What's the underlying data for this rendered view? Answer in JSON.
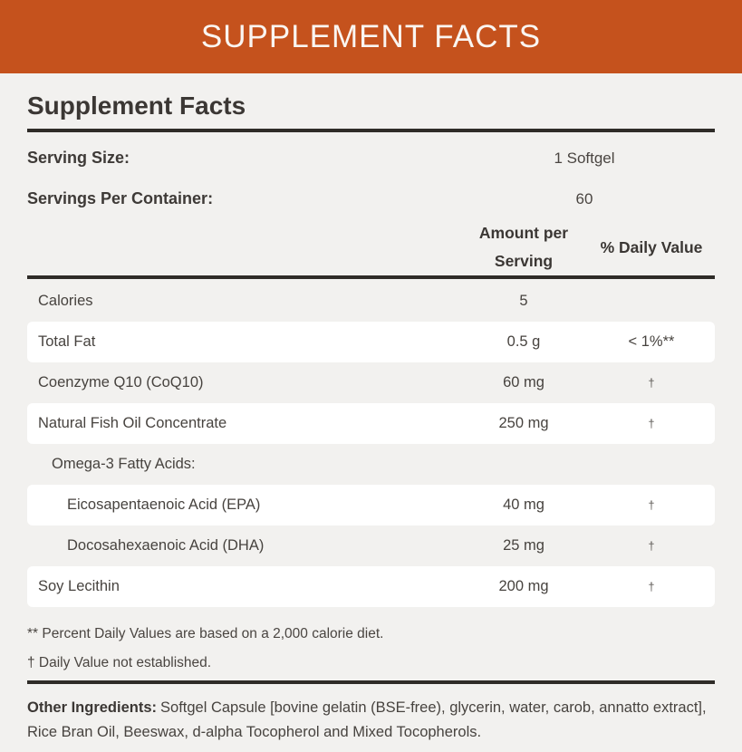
{
  "banner": {
    "title": "SUPPLEMENT FACTS"
  },
  "panel": {
    "heading": "Supplement Facts",
    "serving": [
      {
        "label": "Serving Size:",
        "value": "1 Softgel"
      },
      {
        "label": "Servings Per Container:",
        "value": "60"
      }
    ],
    "columns": {
      "amount": "Amount per Serving",
      "daily_value": "% Daily Value"
    },
    "rows": [
      {
        "name": "Calories",
        "amount": "5",
        "dv": ""
      },
      {
        "name": "Total Fat",
        "amount": "0.5 g",
        "dv": "< 1%**"
      },
      {
        "name": "Coenzyme Q10 (CoQ10)",
        "amount": "60 mg",
        "dv": "†"
      },
      {
        "name": "Natural Fish Oil Concentrate",
        "amount": "250 mg",
        "dv": "†"
      },
      {
        "name": "Omega-3 Fatty Acids:",
        "amount": "",
        "dv": ""
      },
      {
        "name": "Eicosapentaenoic Acid (EPA)",
        "amount": "40 mg",
        "dv": "†"
      },
      {
        "name": "Docosahexaenoic Acid (DHA)",
        "amount": "25 mg",
        "dv": "†"
      },
      {
        "name": "Soy Lecithin",
        "amount": "200 mg",
        "dv": "†"
      }
    ],
    "footnotes": [
      "** Percent Daily Values are based on a 2,000 calorie diet.",
      "† Daily Value not established."
    ],
    "other_ingredients": {
      "label": "Other Ingredients:",
      "text": "Softgel Capsule [bovine gelatin (BSE-free), glycerin, water, carob, annatto extract], Rice Bran Oil, Beeswax, d-alpha Tocopherol and Mixed Tocopherols."
    }
  },
  "colors": {
    "banner_bg": "#c5521d",
    "page_bg": "#f2f1ef",
    "row_stripe": "#ffffff",
    "rule": "#2f2c28",
    "text": "#47433f"
  }
}
